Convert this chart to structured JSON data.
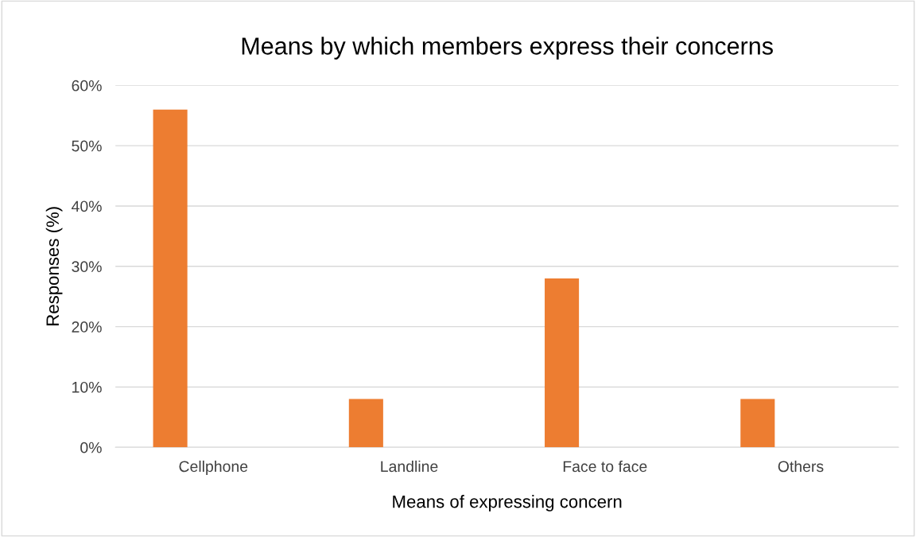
{
  "chart_data": {
    "type": "bar",
    "title": "Means by which members express their concerns",
    "xlabel": "Means of expressing concern",
    "ylabel": "Responses (%)",
    "categories": [
      "Cellphone",
      "Landline",
      "Face to face",
      "Others"
    ],
    "values": [
      56,
      8,
      28,
      8
    ],
    "color": "#ed7d31",
    "ylim": [
      0,
      60
    ],
    "yticks": [
      {
        "value": 0,
        "label": "0%"
      },
      {
        "value": 10,
        "label": "10%"
      },
      {
        "value": 20,
        "label": "20%"
      },
      {
        "value": 30,
        "label": "30%"
      },
      {
        "value": 40,
        "label": "40%"
      },
      {
        "value": 50,
        "label": "50%"
      },
      {
        "value": 60,
        "label": "60%"
      }
    ],
    "grid": "y",
    "legend": false
  }
}
